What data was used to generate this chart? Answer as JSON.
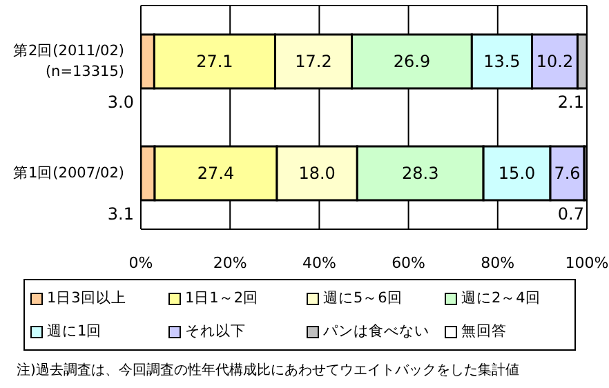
{
  "chart_data": {
    "type": "bar",
    "orientation": "horizontal",
    "stacked": true,
    "categories": [
      "第2回(2011/02)\n(n=13315)",
      "第1回(2007/02)"
    ],
    "series": [
      {
        "name": "1日3回以上",
        "color": "#ffcc99",
        "values": [
          3.0,
          3.1
        ],
        "value_labels": [
          "3.0",
          "3.1"
        ]
      },
      {
        "name": "1日1～2回",
        "color": "#ffff99",
        "values": [
          27.1,
          27.4
        ],
        "value_labels": [
          "27.1",
          "27.4"
        ]
      },
      {
        "name": "週に5～6回",
        "color": "#ffffcc",
        "values": [
          17.2,
          18.0
        ],
        "value_labels": [
          "17.2",
          "18.0"
        ]
      },
      {
        "name": "週に2～4回",
        "color": "#ccffcc",
        "values": [
          26.9,
          28.3
        ],
        "value_labels": [
          "26.9",
          "28.3"
        ]
      },
      {
        "name": "週に1回",
        "color": "#ccffff",
        "values": [
          13.5,
          15.0
        ],
        "value_labels": [
          "13.5",
          "15.0"
        ]
      },
      {
        "name": "それ以下",
        "color": "#ccccff",
        "values": [
          10.2,
          7.6
        ],
        "value_labels": [
          "10.2",
          "7.6"
        ]
      },
      {
        "name": "パンは食べない",
        "color": "#c0c0c0",
        "values": [
          2.1,
          0.7
        ],
        "value_labels": [
          "2.1",
          "0.7"
        ]
      },
      {
        "name": "無回答",
        "color": "#ffffff",
        "values": [
          null,
          null
        ],
        "value_labels": [
          null,
          null
        ]
      }
    ],
    "xlim": [
      0,
      100
    ],
    "xticks": [
      {
        "value": 0,
        "label": "0%"
      },
      {
        "value": 20,
        "label": "20%"
      },
      {
        "value": 40,
        "label": "40%"
      },
      {
        "value": 60,
        "label": "60%"
      },
      {
        "value": 80,
        "label": "80%"
      },
      {
        "value": 100,
        "label": "100%"
      }
    ],
    "grid": "x",
    "legend": "bottom",
    "annotations": [
      "注)過去調査は、今回調査の性年代構成比にあわせてウエイトバックをした集計値"
    ]
  }
}
